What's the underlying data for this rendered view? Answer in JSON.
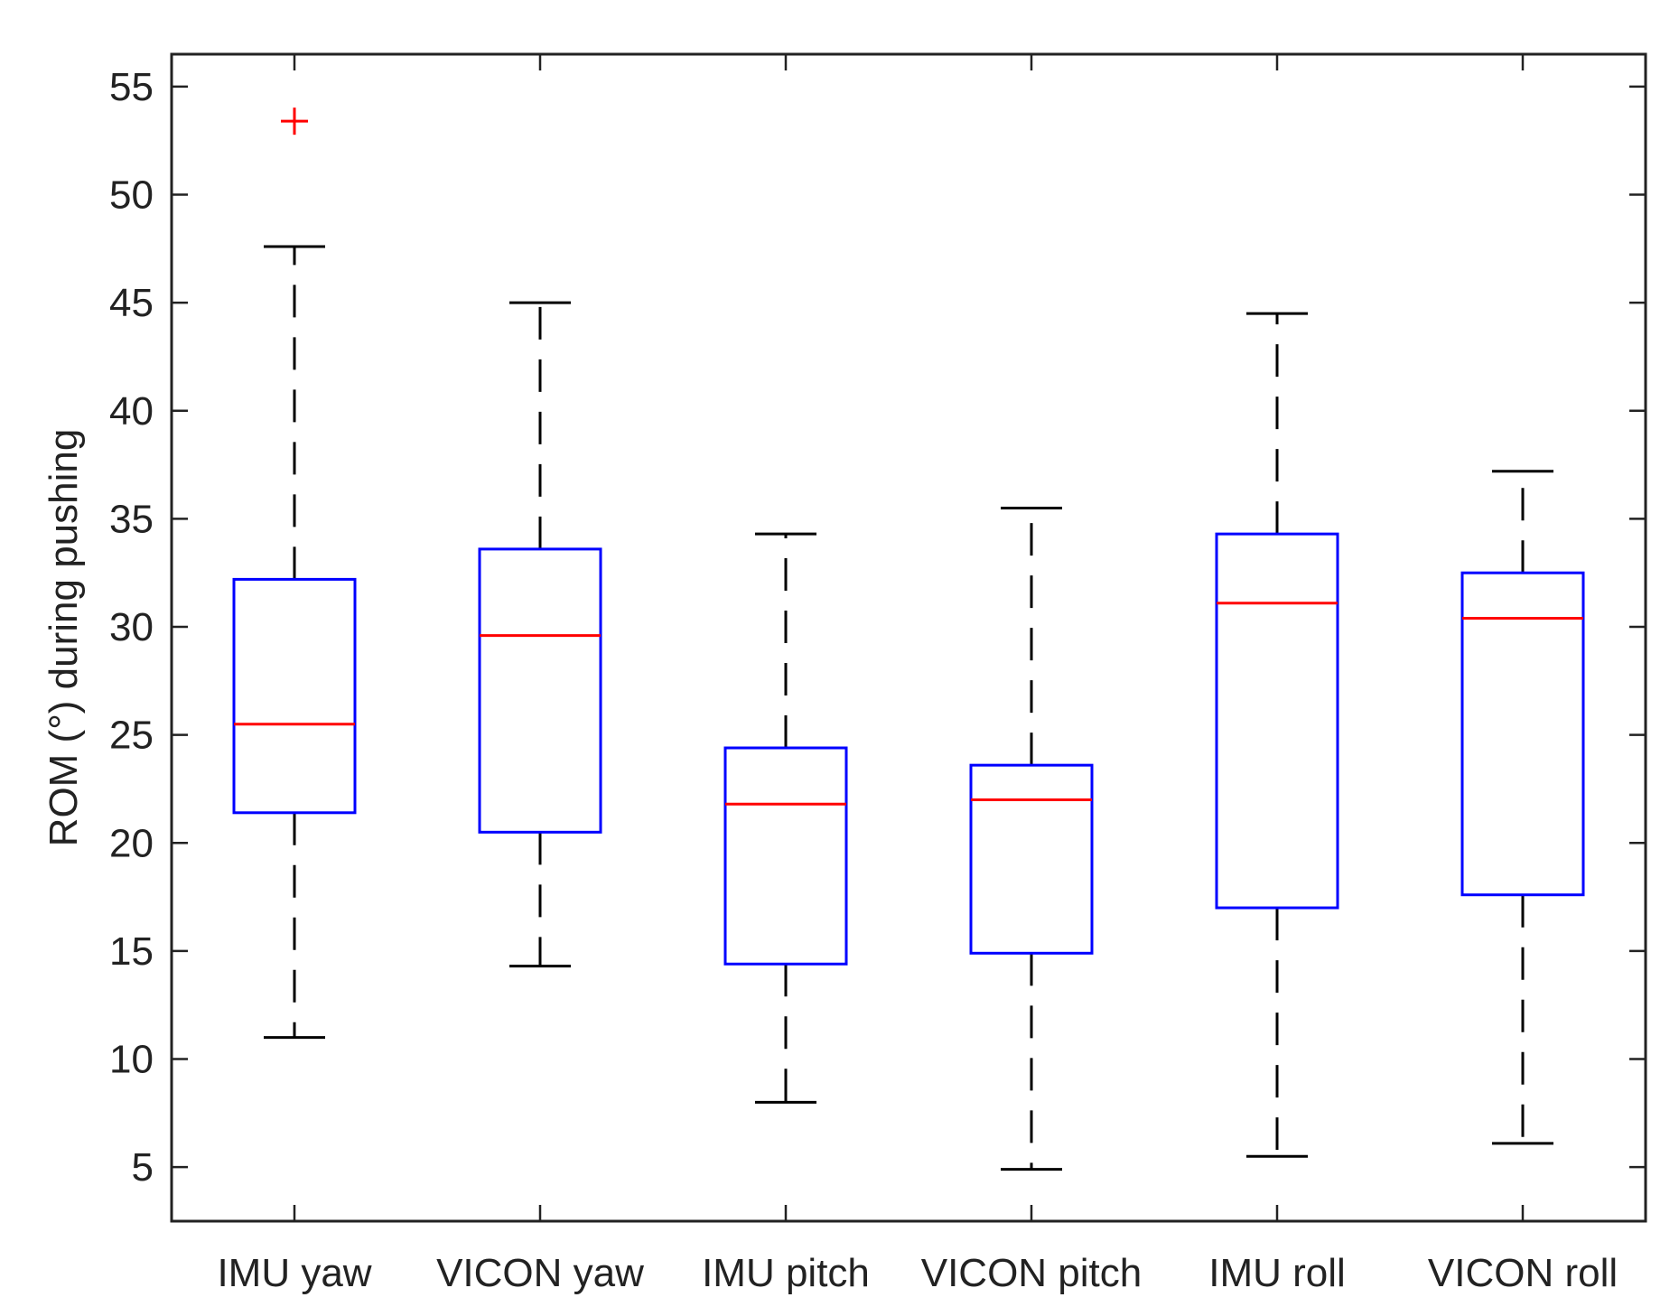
{
  "chart_data": {
    "type": "boxplot",
    "title": "",
    "xlabel": "",
    "ylabel": "ROM (°) during pushing",
    "ylim": [
      2.5,
      56.5
    ],
    "yticks": [
      5,
      10,
      15,
      20,
      25,
      30,
      35,
      40,
      45,
      50,
      55
    ],
    "categories": [
      "IMU yaw",
      "VICON yaw",
      "IMU pitch",
      "VICON pitch",
      "IMU roll",
      "VICON roll"
    ],
    "boxes": [
      {
        "label": "IMU yaw",
        "whisker_low": 11.0,
        "q1": 21.4,
        "median": 25.5,
        "q3": 32.2,
        "whisker_high": 47.6,
        "outliers": [
          53.4
        ]
      },
      {
        "label": "VICON yaw",
        "whisker_low": 14.3,
        "q1": 20.5,
        "median": 29.6,
        "q3": 33.6,
        "whisker_high": 45.0,
        "outliers": []
      },
      {
        "label": "IMU pitch",
        "whisker_low": 8.0,
        "q1": 14.4,
        "median": 21.8,
        "q3": 24.4,
        "whisker_high": 34.3,
        "outliers": []
      },
      {
        "label": "VICON pitch",
        "whisker_low": 4.9,
        "q1": 14.9,
        "median": 22.0,
        "q3": 23.6,
        "whisker_high": 35.5,
        "outliers": []
      },
      {
        "label": "IMU roll",
        "whisker_low": 5.5,
        "q1": 17.0,
        "median": 31.1,
        "q3": 34.3,
        "whisker_high": 44.5,
        "outliers": []
      },
      {
        "label": "VICON roll",
        "whisker_low": 6.1,
        "q1": 17.6,
        "median": 30.4,
        "q3": 32.5,
        "whisker_high": 37.2,
        "outliers": []
      }
    ],
    "colors": {
      "box": "#0000ff",
      "median": "#ff0000",
      "whisker": "#000000",
      "outlier": "#ff0000",
      "axis": "#222222"
    }
  }
}
